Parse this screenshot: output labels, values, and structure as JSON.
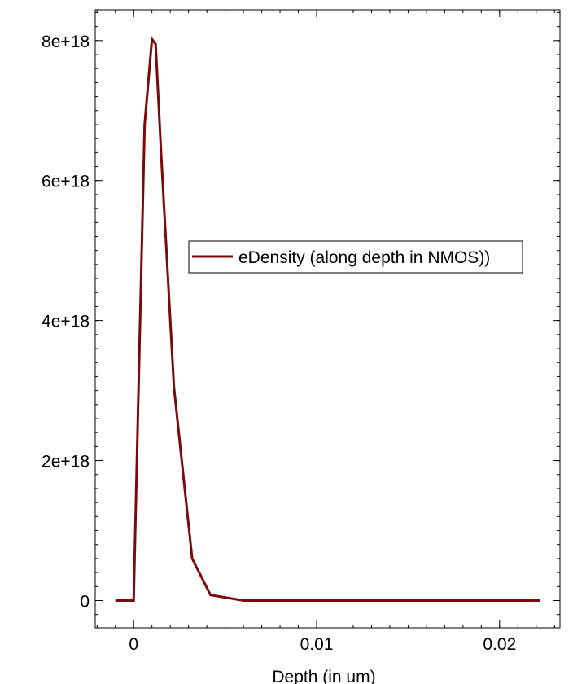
{
  "chart_data": {
    "type": "line",
    "title": "",
    "xlabel": "Depth (in um)",
    "ylabel": "",
    "xlim": [
      -0.0021,
      0.0233
    ],
    "ylim": [
      -3.9e+17,
      8.44e+18
    ],
    "x_ticks": [
      {
        "value": 0,
        "label": "0"
      },
      {
        "value": 0.01,
        "label": "0.01"
      },
      {
        "value": 0.02,
        "label": "0.02"
      }
    ],
    "y_ticks": [
      {
        "value": 0,
        "label": "0"
      },
      {
        "value": 2e+18,
        "label": "2e+18"
      },
      {
        "value": 4e+18,
        "label": "4e+18"
      },
      {
        "value": 6e+18,
        "label": "6e+18"
      },
      {
        "value": 8e+18,
        "label": "8e+18"
      }
    ],
    "grid": false,
    "legend_position": "center-right",
    "series": [
      {
        "name": "eDensity (along depth in NMOS))",
        "color": "#7b0a0a",
        "x": [
          -0.001,
          0,
          0.0006,
          0.001,
          0.0012,
          0.0015,
          0.0022,
          0.0032,
          0.0042,
          0.006,
          0.008,
          0.012,
          0.016,
          0.02,
          0.0222
        ],
        "y": [
          0,
          0,
          6.8e+18,
          8.02e+18,
          7.95e+18,
          6.4e+18,
          3.05e+18,
          6e+17,
          8e+16,
          0,
          0,
          0,
          0,
          0,
          0
        ]
      }
    ]
  }
}
